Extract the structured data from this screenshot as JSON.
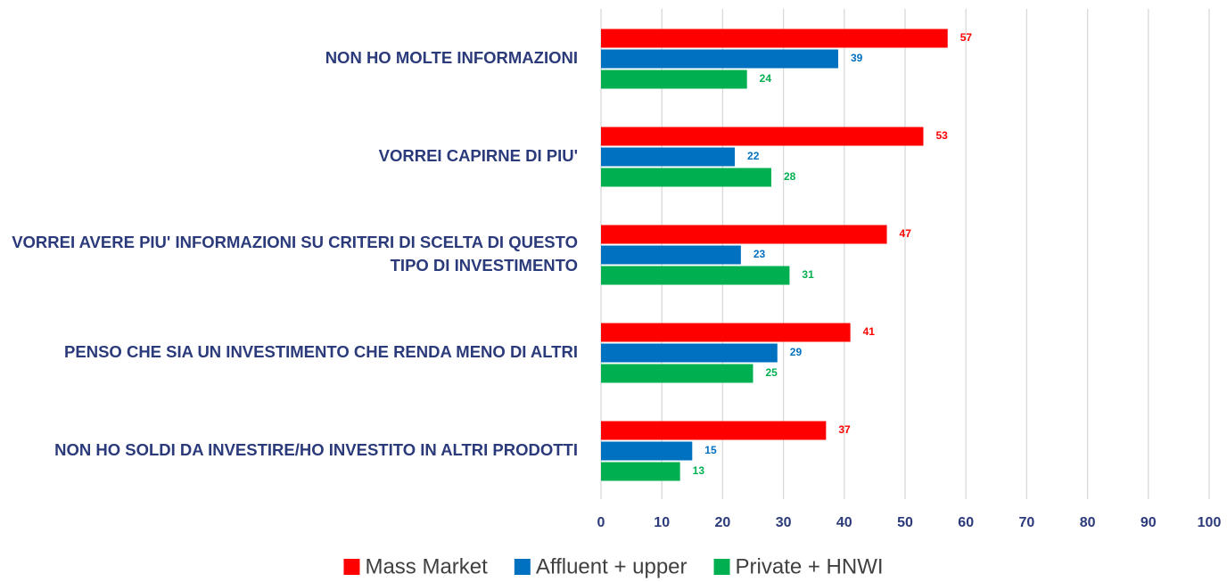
{
  "chart_data": {
    "type": "bar",
    "orientation": "horizontal",
    "categories": [
      "NON HO MOLTE INFORMAZIONI",
      "VORREI CAPIRNE DI PIU'",
      "VORREI AVERE PIU' INFORMAZIONI SU CRITERI DI SCELTA DI QUESTO TIPO DI INVESTIMENTO",
      "PENSO CHE SIA UN INVESTIMENTO CHE RENDA MENO DI ALTRI",
      "NON HO SOLDI DA INVESTIRE/HO INVESTITO IN ALTRI PRODOTTI"
    ],
    "series": [
      {
        "name": "Mass Market",
        "color": "#ff0000",
        "values": [
          57,
          53,
          47,
          41,
          37
        ]
      },
      {
        "name": "Affluent + upper",
        "color": "#0070c0",
        "values": [
          39,
          22,
          23,
          29,
          15
        ]
      },
      {
        "name": "Private + HNWI",
        "color": "#00b050",
        "values": [
          24,
          28,
          31,
          25,
          13
        ]
      }
    ],
    "xlim": [
      0,
      100
    ],
    "xticks": [
      0,
      10,
      20,
      30,
      40,
      50,
      60,
      70,
      80,
      90,
      100
    ],
    "grid": true,
    "legend": "bottom"
  }
}
